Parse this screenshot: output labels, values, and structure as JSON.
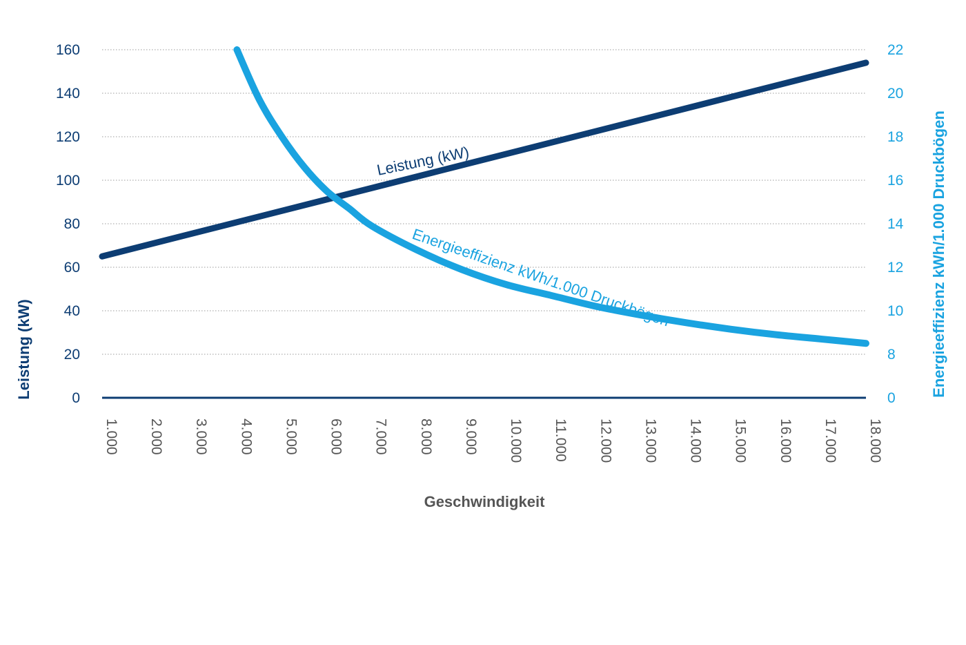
{
  "chart_data": {
    "type": "line",
    "xlabel": "Geschwindigkeit",
    "ylabel_left": "Leistung (kW)",
    "ylabel_right": "Energieeffizienz kWh/1.000 Druckbögen",
    "x_ticks": [
      "1.000",
      "2.000",
      "3.000",
      "4.000",
      "5.000",
      "6.000",
      "7.000",
      "8.000",
      "9.000",
      "10.000",
      "11.000",
      "12.000",
      "13.000",
      "14.000",
      "15.000",
      "16.000",
      "17.000",
      "18.000"
    ],
    "x_range": [
      1000,
      18000
    ],
    "y_left": {
      "ticks": [
        "0",
        "20",
        "40",
        "60",
        "80",
        "100",
        "120",
        "140",
        "160"
      ],
      "range": [
        0,
        160
      ]
    },
    "y_right": {
      "ticks": [
        "0",
        "8",
        "10",
        "12",
        "14",
        "16",
        "18",
        "20",
        "22"
      ]
    },
    "grid": "horizontal-dotted",
    "series": [
      {
        "name": "Leistung (kW)",
        "axis": "left",
        "color": "#0d3d73",
        "x": [
          1000,
          18000
        ],
        "y": [
          65,
          154
        ]
      },
      {
        "name": "Energieeffizienz kWh/1.000 Druckbögen",
        "axis": "right",
        "color": "#1aa3e0",
        "x": [
          4000,
          4500,
          5000,
          5500,
          6000,
          6500,
          7000,
          8000,
          9000,
          10000,
          11000,
          12000,
          13000,
          14000,
          15000,
          16000,
          17000,
          18000
        ],
        "y": [
          22,
          19.7,
          18.0,
          16.6,
          15.5,
          14.7,
          13.9,
          12.8,
          11.9,
          11.2,
          10.7,
          10.2,
          9.8,
          9.45,
          9.15,
          8.9,
          8.7,
          8.5
        ]
      }
    ]
  }
}
